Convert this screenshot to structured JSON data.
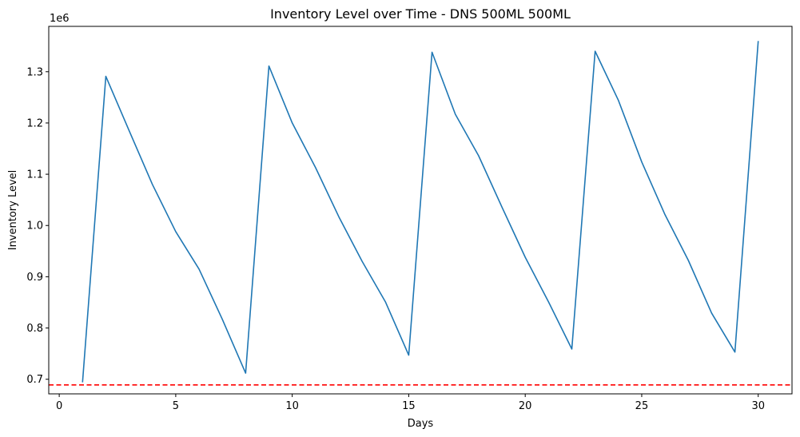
{
  "chart_data": {
    "type": "line",
    "title": "Inventory Level over Time - DNS 500ML 500ML",
    "xlabel": "Days",
    "ylabel": "Inventory Level",
    "y_offset_label": "1e6",
    "xlim": [
      -0.45,
      31.45
    ],
    "ylim": [
      0.6715,
      1.3885
    ],
    "xticks": [
      0,
      5,
      10,
      15,
      20,
      25,
      30
    ],
    "xtick_labels": [
      "0",
      "5",
      "10",
      "15",
      "20",
      "25",
      "30"
    ],
    "yticks": [
      0.7,
      0.8,
      0.9,
      1.0,
      1.1,
      1.2,
      1.3
    ],
    "ytick_labels": [
      "0.7",
      "0.8",
      "0.9",
      "1.0",
      "1.1",
      "1.2",
      "1.3"
    ],
    "grid": false,
    "series": [
      {
        "color": "#1f77b4",
        "x": [
          1,
          2,
          3,
          4,
          5,
          6,
          7,
          8,
          9,
          10,
          11,
          12,
          13,
          14,
          15,
          16,
          17,
          18,
          19,
          20,
          21,
          22,
          23,
          24,
          25,
          26,
          27,
          28,
          29,
          30
        ],
        "y": [
          0.694,
          1.291,
          1.185,
          1.08,
          0.988,
          0.915,
          0.817,
          0.712,
          1.311,
          1.2,
          1.113,
          1.017,
          0.93,
          0.851,
          0.747,
          1.338,
          1.217,
          1.136,
          1.036,
          0.938,
          0.851,
          0.759,
          1.34,
          1.244,
          1.124,
          1.021,
          0.932,
          0.829,
          0.753,
          1.36
        ]
      }
    ],
    "reference_line": {
      "orientation": "horizontal",
      "y": 0.689,
      "color": "#ff0000",
      "style": "dashed"
    }
  }
}
